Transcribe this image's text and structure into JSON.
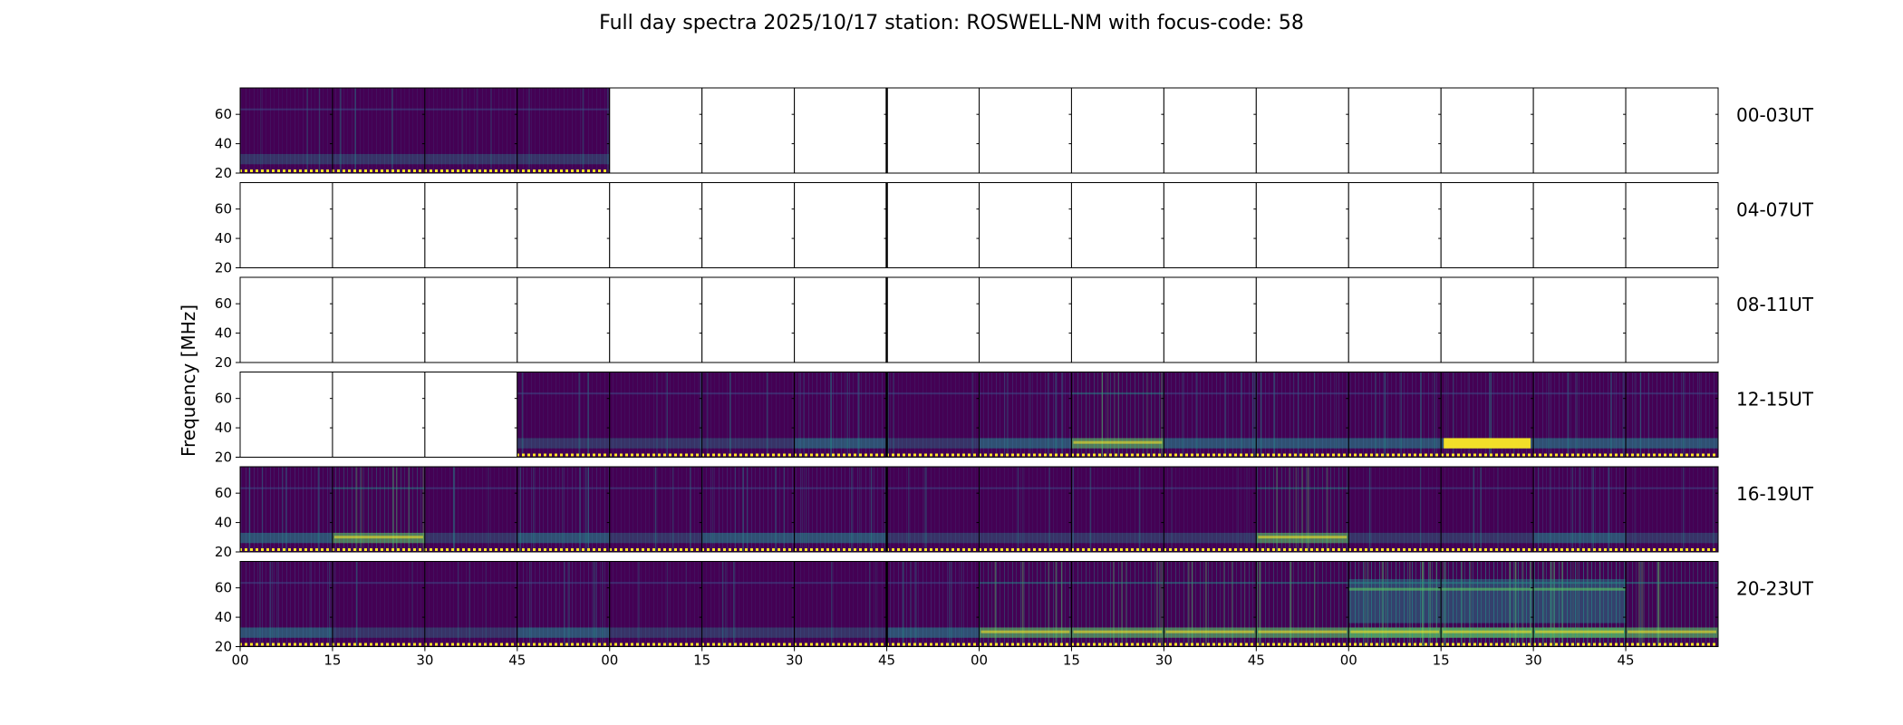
{
  "figure": {
    "title": "Full day spectra 2025/10/17 station: ROSWELL-NM with focus-code: 58",
    "ylabel": "Frequency [MHz]"
  },
  "chart_data": {
    "type": "heatmap",
    "title": "Full day spectra 2025/10/17 station: ROSWELL-NM with focus-code: 58",
    "ylabel": "Frequency [MHz]",
    "xlabel": "",
    "ylim": [
      20,
      78
    ],
    "y_ticks": [
      20,
      40,
      60
    ],
    "x_ticks": [
      "00",
      "15",
      "30",
      "45",
      "00",
      "15",
      "30",
      "45",
      "00",
      "15",
      "30",
      "45",
      "00",
      "15",
      "30",
      "45"
    ],
    "colormap": {
      "low": "#440154",
      "mid_low": "#3b528b",
      "mid": "#21918c",
      "mid_high": "#5ec962",
      "high": "#fde725"
    },
    "rows": [
      {
        "label": "00-03UT",
        "panels": [
          "D",
          "D",
          "D",
          "D",
          "E",
          "E",
          "E",
          "E",
          "E",
          "E",
          "E",
          "E",
          "E",
          "E",
          "E",
          "E"
        ]
      },
      {
        "label": "04-07UT",
        "panels": [
          "E",
          "E",
          "E",
          "E",
          "E",
          "E",
          "E",
          "E",
          "E",
          "E",
          "E",
          "E",
          "E",
          "E",
          "E",
          "E"
        ]
      },
      {
        "label": "08-11UT",
        "panels": [
          "E",
          "E",
          "E",
          "E",
          "E",
          "E",
          "E",
          "E",
          "E",
          "E",
          "E",
          "E",
          "E",
          "E",
          "E",
          "E"
        ]
      },
      {
        "label": "12-15UT",
        "panels": [
          "E",
          "E",
          "E",
          "D",
          "D",
          "D",
          "M",
          "D",
          "M",
          "H",
          "M",
          "M",
          "M",
          "S",
          "M",
          "M"
        ]
      },
      {
        "label": "16-19UT",
        "panels": [
          "M",
          "H",
          "D",
          "M",
          "D",
          "M",
          "M",
          "D",
          "D",
          "D",
          "D",
          "H",
          "D",
          "D",
          "M",
          "D"
        ]
      },
      {
        "label": "20-23UT",
        "panels": [
          "M",
          "D",
          "D",
          "M",
          "D",
          "D",
          "D",
          "M",
          "H",
          "H",
          "H",
          "H",
          "V",
          "V",
          "V",
          "H"
        ]
      }
    ],
    "panel_key": {
      "E": "no data",
      "D": "low activity",
      "M": "moderate activity",
      "H": "high activity",
      "V": "very high activity",
      "S": "strong low-frequency band"
    }
  }
}
